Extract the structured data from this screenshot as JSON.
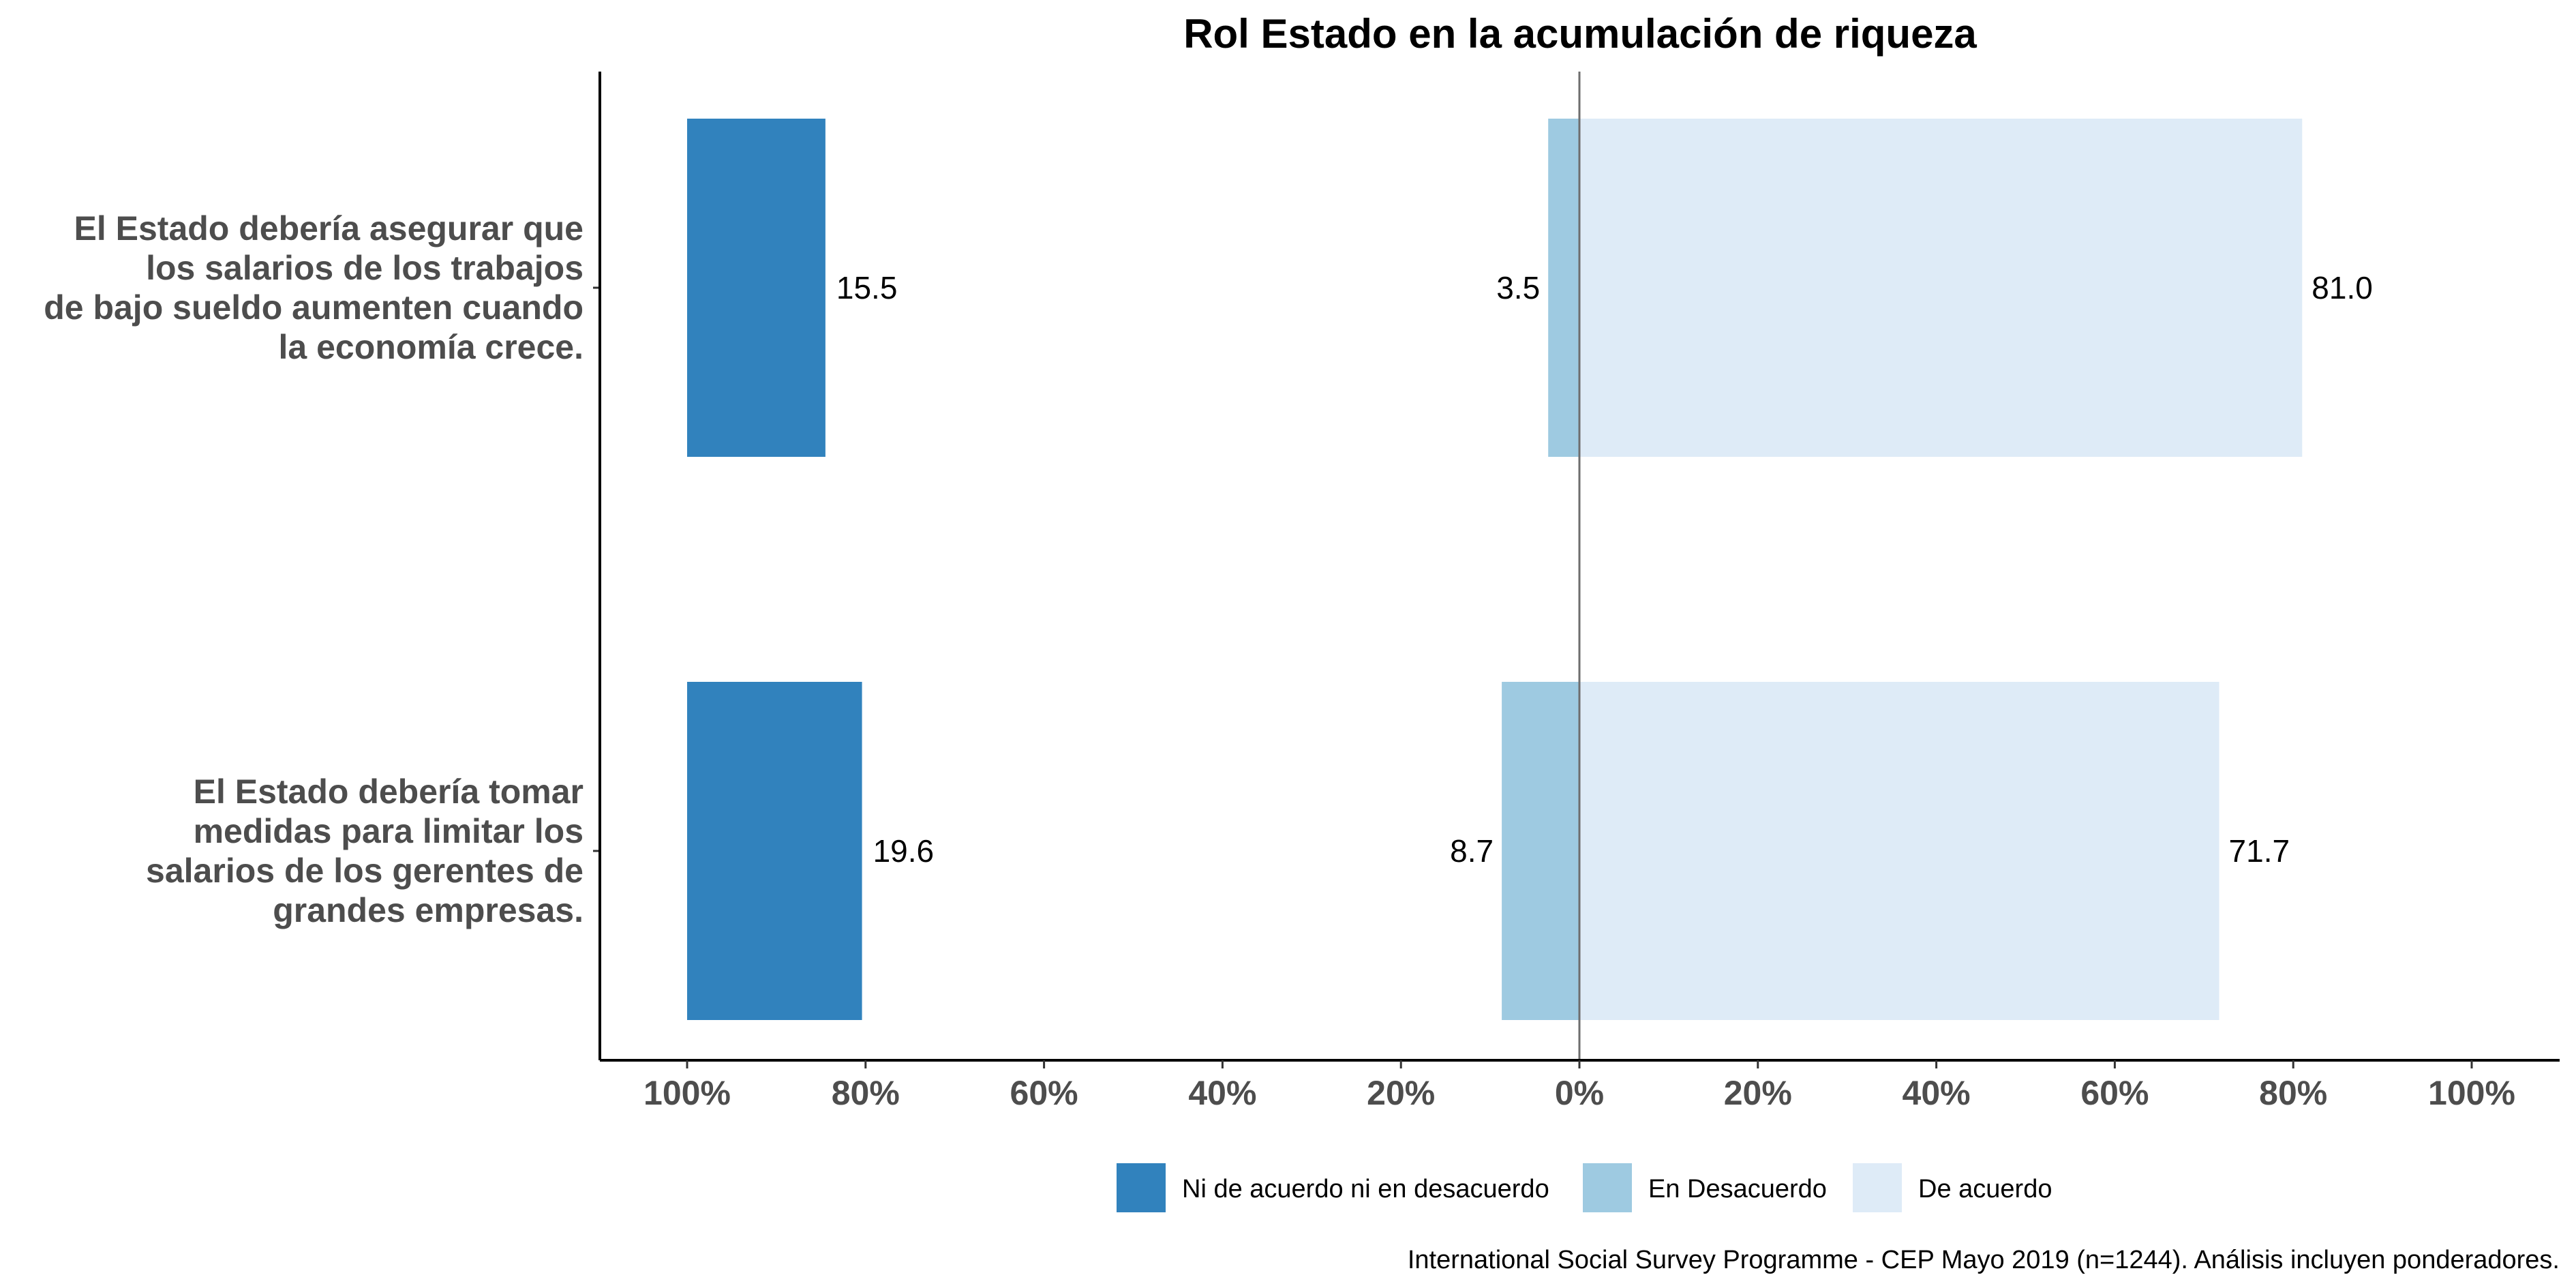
{
  "chart_data": {
    "type": "bar",
    "orientation": "horizontal-diverging",
    "title": "Rol Estado en la acumulación de riqueza",
    "categories": [
      "El Estado debería asegurar que los salarios de los trabajos de bajo sueldo aumenten cuando la economía crece.",
      "El Estado debería tomar medidas para limitar los salarios de los gerentes de grandes empresas."
    ],
    "category_lines": [
      [
        "El Estado debería asegurar que",
        "los salarios de los trabajos",
        "de bajo sueldo aumenten cuando",
        "la economía crece."
      ],
      [
        "El Estado debería tomar",
        "medidas para limitar los",
        "salarios de los gerentes de",
        "grandes empresas."
      ]
    ],
    "series": [
      {
        "name": "Ni de acuerdo ni en desacuerdo",
        "color": "#3182bd",
        "values": [
          15.5,
          19.6
        ],
        "labels": [
          "15.5",
          "19.6"
        ],
        "side": "left-anchored"
      },
      {
        "name": "En Desacuerdo",
        "color": "#9ecae1",
        "values": [
          3.5,
          8.7
        ],
        "labels": [
          "3.5",
          "8.7"
        ],
        "side": "left-of-center"
      },
      {
        "name": "De acuerdo",
        "color": "#deebf7",
        "values": [
          81.0,
          71.7
        ],
        "labels": [
          "81.0",
          "71.7"
        ],
        "side": "right-of-center"
      }
    ],
    "x_ticks": [
      "100%",
      "80%",
      "60%",
      "40%",
      "20%",
      "0%",
      "20%",
      "40%",
      "60%",
      "80%",
      "100%"
    ],
    "xlim": [
      -100,
      100
    ],
    "center_line": 0,
    "grid": false,
    "legend_position": "bottom",
    "caption": "International Social Survey Programme - CEP Mayo 2019 (n=1244). Análisis incluyen ponderadores."
  }
}
